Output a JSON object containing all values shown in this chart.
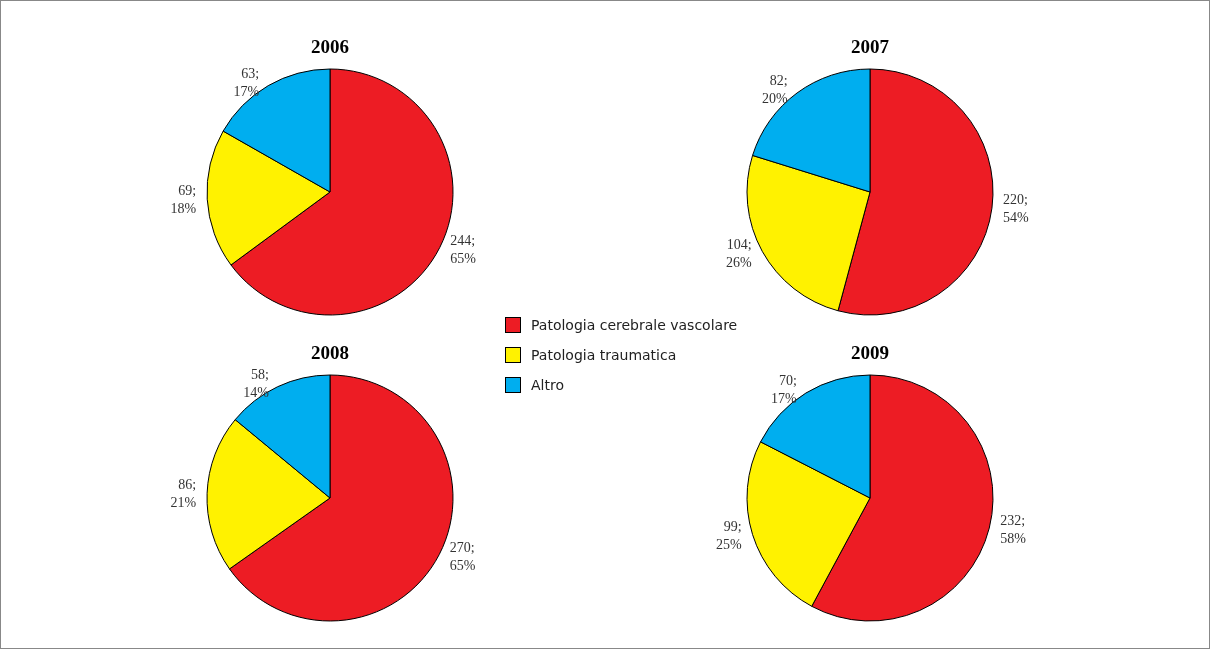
{
  "chart_data": [
    {
      "type": "pie",
      "title": "2006",
      "categories": [
        "Patologia cerebrale vascolare",
        "Patologia traumatica",
        "Altro"
      ],
      "values": [
        244,
        69,
        63
      ],
      "colors": [
        "#ed1c24",
        "#fff200",
        "#00aeef"
      ],
      "value_labels": [
        "244;\n65%",
        "69;\n18%",
        "63;\n17%"
      ],
      "legend": "right"
    },
    {
      "type": "pie",
      "title": "2007",
      "categories": [
        null,
        null,
        null
      ],
      "values": [
        220,
        104,
        82
      ],
      "colors": [
        "#ed1c24",
        "#fff200",
        "#00aeef"
      ],
      "value_labels": [
        "220;\n54%",
        "104;\n26%",
        "82;\n20%"
      ]
    },
    {
      "type": "pie",
      "title": "2008",
      "categories": [
        null,
        null,
        null
      ],
      "values": [
        270,
        86,
        58
      ],
      "colors": [
        "#ed1c24",
        "#fff200",
        "#00aeef"
      ],
      "value_labels": [
        "270;\n65%",
        "86;\n21%",
        "58;\n14%"
      ]
    },
    {
      "type": "pie",
      "title": "2009",
      "categories": [
        null,
        null,
        null
      ],
      "values": [
        232,
        99,
        70
      ],
      "colors": [
        "#ed1c24",
        "#fff200",
        "#00aeef"
      ],
      "value_labels": [
        "232;\n58%",
        "99;\n25%",
        "70;\n17%"
      ]
    }
  ]
}
